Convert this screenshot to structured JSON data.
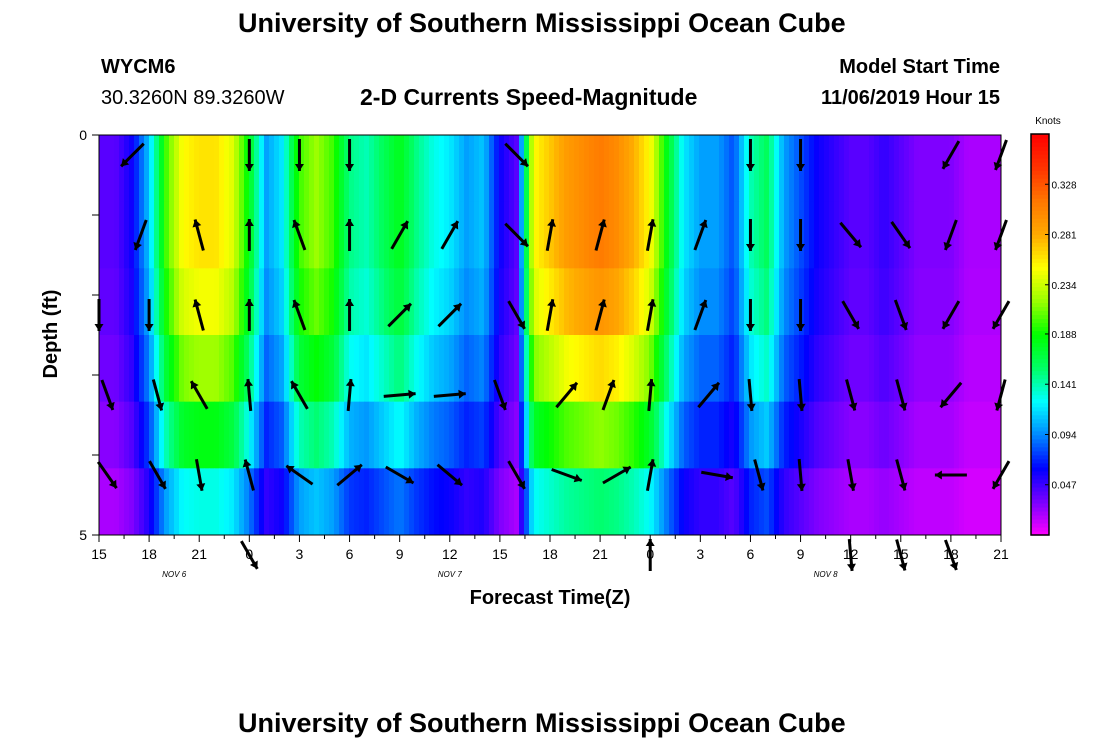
{
  "page": {
    "title_top": "University of Southern Mississippi Ocean Cube",
    "title_bottom": "University of Southern Mississippi Ocean Cube",
    "station_id": "WYCM6",
    "station_coords": "30.3260N 89.3260W",
    "plot_title": "2-D Currents Speed-Magnitude",
    "model_label": "Model Start Time",
    "model_time": "11/06/2019 Hour 15"
  },
  "chart_data": {
    "type": "heatmap",
    "title": "2-D Currents Speed-Magnitude",
    "xlabel": "Forecast Time(Z)",
    "ylabel": "Depth (ft)",
    "x_range_hours": [
      0,
      54
    ],
    "ylim": [
      0,
      5
    ],
    "x_tick_labels": [
      "15",
      "18",
      "21",
      "0",
      "3",
      "6",
      "9",
      "12",
      "15",
      "18",
      "21",
      "0",
      "3",
      "6",
      "9",
      "12",
      "15",
      "18",
      "21"
    ],
    "y_tick_labels": [
      "0",
      "5"
    ],
    "date_labels": [
      {
        "text": "NOV  6",
        "hour": 4.5
      },
      {
        "text": "NOV  7",
        "hour": 21
      },
      {
        "text": "NOV  8",
        "hour": 43.5
      }
    ],
    "colorbar": {
      "title": "Knots",
      "ticks": [
        0.047,
        0.094,
        0.141,
        0.188,
        0.234,
        0.281,
        0.328
      ],
      "range": [
        0,
        0.375
      ],
      "colors": [
        "#ff00ff",
        "#7a00ff",
        "#0000ff",
        "#0088ff",
        "#00ffff",
        "#00ff66",
        "#00ff00",
        "#99ff00",
        "#ffff00",
        "#ffaa00",
        "#ff7700",
        "#ff3300",
        "#ff0000"
      ]
    },
    "depth_layers": 5,
    "speed_profile_hours": [
      0,
      1,
      1.5,
      2,
      3,
      4,
      5,
      6,
      7,
      8,
      9,
      10,
      11,
      12,
      13,
      14,
      15,
      16,
      17,
      18,
      19,
      20,
      21,
      22,
      23,
      24,
      25,
      26,
      27,
      28,
      29,
      30,
      31,
      32,
      33,
      34,
      35,
      36,
      37,
      38,
      39,
      40,
      41,
      42,
      43,
      44,
      45,
      46,
      47,
      48,
      49,
      50,
      51,
      52,
      53,
      54
    ],
    "speed_profile_knots": [
      0.04,
      0.04,
      0.05,
      0.06,
      0.11,
      0.2,
      0.25,
      0.26,
      0.26,
      0.24,
      0.18,
      0.1,
      0.12,
      0.2,
      0.22,
      0.2,
      0.15,
      0.14,
      0.16,
      0.18,
      0.15,
      0.13,
      0.12,
      0.1,
      0.11,
      0.06,
      0.04,
      0.25,
      0.27,
      0.29,
      0.3,
      0.31,
      0.3,
      0.28,
      0.25,
      0.18,
      0.12,
      0.1,
      0.1,
      0.08,
      0.14,
      0.16,
      0.1,
      0.08,
      0.06,
      0.05,
      0.04,
      0.04,
      0.05,
      0.04,
      0.03,
      0.03,
      0.03,
      0.02,
      0.02,
      0.02
    ],
    "layer_speed_factor": [
      1.0,
      1.0,
      0.95,
      0.85,
      0.7,
      0.5
    ],
    "vectors": [
      {
        "hour": 2,
        "row": 0,
        "dir_deg": 225
      },
      {
        "hour": 9,
        "row": 0,
        "dir_deg": 180
      },
      {
        "hour": 12,
        "row": 0,
        "dir_deg": 180
      },
      {
        "hour": 15,
        "row": 0,
        "dir_deg": 180
      },
      {
        "hour": 25,
        "row": 0,
        "dir_deg": 135
      },
      {
        "hour": 39,
        "row": 0,
        "dir_deg": 180
      },
      {
        "hour": 42,
        "row": 0,
        "dir_deg": 180
      },
      {
        "hour": 51,
        "row": 0,
        "dir_deg": 210
      },
      {
        "hour": 54,
        "row": 0,
        "dir_deg": 200
      },
      {
        "hour": 2.5,
        "row": 1,
        "dir_deg": 200
      },
      {
        "hour": 6,
        "row": 1,
        "dir_deg": 345
      },
      {
        "hour": 9,
        "row": 1,
        "dir_deg": 0
      },
      {
        "hour": 12,
        "row": 1,
        "dir_deg": 340
      },
      {
        "hour": 15,
        "row": 1,
        "dir_deg": 0
      },
      {
        "hour": 18,
        "row": 1,
        "dir_deg": 30
      },
      {
        "hour": 21,
        "row": 1,
        "dir_deg": 30
      },
      {
        "hour": 25,
        "row": 1,
        "dir_deg": 135
      },
      {
        "hour": 27,
        "row": 1,
        "dir_deg": 10
      },
      {
        "hour": 30,
        "row": 1,
        "dir_deg": 15
      },
      {
        "hour": 33,
        "row": 1,
        "dir_deg": 10
      },
      {
        "hour": 36,
        "row": 1,
        "dir_deg": 20
      },
      {
        "hour": 39,
        "row": 1,
        "dir_deg": 180
      },
      {
        "hour": 42,
        "row": 1,
        "dir_deg": 180
      },
      {
        "hour": 45,
        "row": 1,
        "dir_deg": 140
      },
      {
        "hour": 48,
        "row": 1,
        "dir_deg": 145
      },
      {
        "hour": 51,
        "row": 1,
        "dir_deg": 200
      },
      {
        "hour": 54,
        "row": 1,
        "dir_deg": 200
      },
      {
        "hour": 0,
        "row": 2,
        "dir_deg": 180
      },
      {
        "hour": 3,
        "row": 2,
        "dir_deg": 180
      },
      {
        "hour": 6,
        "row": 2,
        "dir_deg": 345
      },
      {
        "hour": 9,
        "row": 2,
        "dir_deg": 0
      },
      {
        "hour": 12,
        "row": 2,
        "dir_deg": 340
      },
      {
        "hour": 15,
        "row": 2,
        "dir_deg": 0
      },
      {
        "hour": 18,
        "row": 2,
        "dir_deg": 45
      },
      {
        "hour": 21,
        "row": 2,
        "dir_deg": 45
      },
      {
        "hour": 25,
        "row": 2,
        "dir_deg": 150
      },
      {
        "hour": 27,
        "row": 2,
        "dir_deg": 10
      },
      {
        "hour": 30,
        "row": 2,
        "dir_deg": 15
      },
      {
        "hour": 33,
        "row": 2,
        "dir_deg": 10
      },
      {
        "hour": 36,
        "row": 2,
        "dir_deg": 20
      },
      {
        "hour": 39,
        "row": 2,
        "dir_deg": 180
      },
      {
        "hour": 42,
        "row": 2,
        "dir_deg": 180
      },
      {
        "hour": 45,
        "row": 2,
        "dir_deg": 150
      },
      {
        "hour": 48,
        "row": 2,
        "dir_deg": 160
      },
      {
        "hour": 51,
        "row": 2,
        "dir_deg": 210
      },
      {
        "hour": 54,
        "row": 2,
        "dir_deg": 210
      },
      {
        "hour": 0.5,
        "row": 3,
        "dir_deg": 160
      },
      {
        "hour": 3.5,
        "row": 3,
        "dir_deg": 165
      },
      {
        "hour": 6,
        "row": 3,
        "dir_deg": 330
      },
      {
        "hour": 9,
        "row": 3,
        "dir_deg": 355
      },
      {
        "hour": 12,
        "row": 3,
        "dir_deg": 330
      },
      {
        "hour": 15,
        "row": 3,
        "dir_deg": 5
      },
      {
        "hour": 18,
        "row": 3,
        "dir_deg": 85
      },
      {
        "hour": 21,
        "row": 3,
        "dir_deg": 85
      },
      {
        "hour": 24,
        "row": 3,
        "dir_deg": 160
      },
      {
        "hour": 28,
        "row": 3,
        "dir_deg": 40
      },
      {
        "hour": 30.5,
        "row": 3,
        "dir_deg": 20
      },
      {
        "hour": 33,
        "row": 3,
        "dir_deg": 5
      },
      {
        "hour": 36.5,
        "row": 3,
        "dir_deg": 40
      },
      {
        "hour": 39,
        "row": 3,
        "dir_deg": 175
      },
      {
        "hour": 42,
        "row": 3,
        "dir_deg": 175
      },
      {
        "hour": 45,
        "row": 3,
        "dir_deg": 165
      },
      {
        "hour": 48,
        "row": 3,
        "dir_deg": 165
      },
      {
        "hour": 51,
        "row": 3,
        "dir_deg": 220
      },
      {
        "hour": 54,
        "row": 3,
        "dir_deg": 195
      },
      {
        "hour": 0.5,
        "row": 4,
        "dir_deg": 145
      },
      {
        "hour": 3.5,
        "row": 4,
        "dir_deg": 150
      },
      {
        "hour": 6,
        "row": 4,
        "dir_deg": 170
      },
      {
        "hour": 9,
        "row": 4,
        "dir_deg": 345
      },
      {
        "hour": 12,
        "row": 4,
        "dir_deg": 305
      },
      {
        "hour": 15,
        "row": 4,
        "dir_deg": 50
      },
      {
        "hour": 18,
        "row": 4,
        "dir_deg": 120
      },
      {
        "hour": 21,
        "row": 4,
        "dir_deg": 130
      },
      {
        "hour": 25,
        "row": 4,
        "dir_deg": 150
      },
      {
        "hour": 28,
        "row": 4,
        "dir_deg": 110
      },
      {
        "hour": 31,
        "row": 4,
        "dir_deg": 60
      },
      {
        "hour": 33,
        "row": 4,
        "dir_deg": 10
      },
      {
        "hour": 37,
        "row": 4,
        "dir_deg": 100
      },
      {
        "hour": 39.5,
        "row": 4,
        "dir_deg": 165
      },
      {
        "hour": 42,
        "row": 4,
        "dir_deg": 175
      },
      {
        "hour": 45,
        "row": 4,
        "dir_deg": 170
      },
      {
        "hour": 48,
        "row": 4,
        "dir_deg": 165
      },
      {
        "hour": 51,
        "row": 4,
        "dir_deg": 270
      },
      {
        "hour": 54,
        "row": 4,
        "dir_deg": 210
      },
      {
        "hour": 9,
        "row": 5,
        "dir_deg": 150
      },
      {
        "hour": 33,
        "row": 5,
        "dir_deg": 0
      },
      {
        "hour": 45,
        "row": 5,
        "dir_deg": 175
      },
      {
        "hour": 48,
        "row": 5,
        "dir_deg": 165
      },
      {
        "hour": 51,
        "row": 5,
        "dir_deg": 160
      }
    ]
  }
}
